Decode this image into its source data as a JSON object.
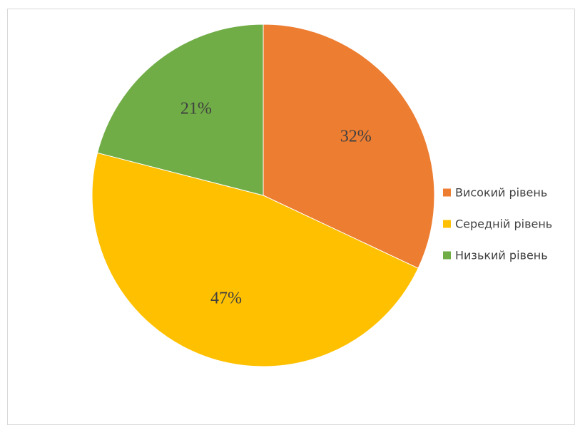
{
  "chart_data": {
    "type": "pie",
    "categories": [
      "Високий рівень",
      "Середній рівень",
      "Низький рівень"
    ],
    "values": [
      32,
      47,
      21
    ],
    "labels": [
      "32%",
      "47%",
      "21%"
    ],
    "colors": [
      "#ED7D31",
      "#FFC000",
      "#70AD47"
    ],
    "title": "",
    "legend_position": "right",
    "start_angle": "12 o'clock, clockwise"
  }
}
